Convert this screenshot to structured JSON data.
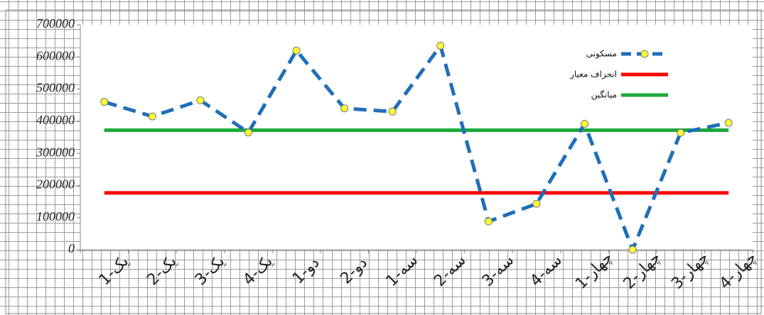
{
  "chart_data": {
    "type": "line",
    "categories": [
      "یک-1",
      "یک-2",
      "یک-3",
      "یک-4",
      "دو-1",
      "دو-2",
      "سه-1",
      "سه-2",
      "سه-3",
      "سه-4",
      "چهار-1",
      "چهار-2",
      "چهار-3",
      "چهار-4"
    ],
    "series": [
      {
        "name": "مسکونی",
        "color": "#1f6fb8",
        "dashed": true,
        "markers": true,
        "values": [
          460000,
          415000,
          465000,
          365000,
          620000,
          440000,
          430000,
          635000,
          88000,
          143000,
          392000,
          0,
          364000,
          395000
        ]
      },
      {
        "name": "انحراف معیار",
        "color": "#ff0000",
        "dashed": false,
        "markers": false,
        "values": [
          177000,
          177000,
          177000,
          177000,
          177000,
          177000,
          177000,
          177000,
          177000,
          177000,
          177000,
          177000,
          177000,
          177000
        ]
      },
      {
        "name": "میانگین",
        "color": "#1aaa3a",
        "dashed": false,
        "markers": false,
        "values": [
          372000,
          372000,
          372000,
          372000,
          372000,
          372000,
          372000,
          372000,
          372000,
          372000,
          372000,
          372000,
          372000,
          372000
        ]
      }
    ],
    "ylim": [
      0,
      700000
    ],
    "yticks": [
      0,
      100000,
      200000,
      300000,
      400000,
      500000,
      600000,
      700000
    ],
    "legend": "upper-right"
  }
}
